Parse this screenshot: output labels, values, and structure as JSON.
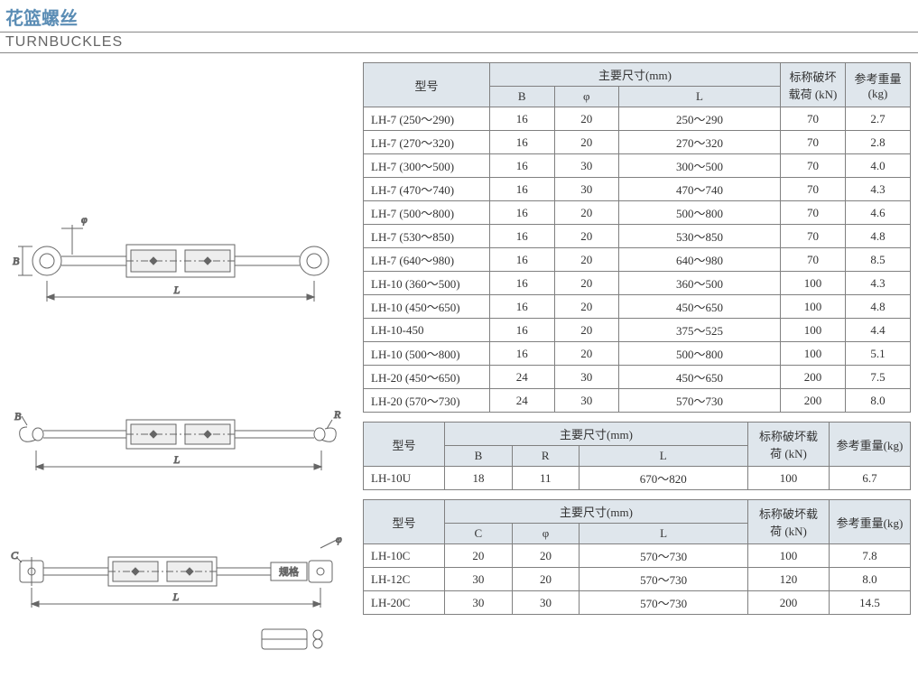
{
  "title_zh": "花篮螺丝",
  "title_en": "TURNBUCKLES",
  "colors": {
    "title": "#5b8db5",
    "header_bg": "#dfe6ec",
    "border": "#808080",
    "text": "#333333",
    "diagram_stroke": "#666666",
    "diagram_fill": "#f0f0f0"
  },
  "table1": {
    "headers": {
      "model": "型号",
      "main_dim": "主要尺寸(mm)",
      "B": "B",
      "phi": "φ",
      "L": "L",
      "load": "标称破坏载荷 (kN)",
      "weight": "参考重量(kg)"
    },
    "rows": [
      {
        "model": "LH-7 (250～290)",
        "B": "16",
        "phi": "20",
        "L": "250～290",
        "load": "70",
        "weight": "2.7"
      },
      {
        "model": "LH-7 (270～320)",
        "B": "16",
        "phi": "20",
        "L": "270～320",
        "load": "70",
        "weight": "2.8"
      },
      {
        "model": "LH-7 (300～500)",
        "B": "16",
        "phi": "30",
        "L": "300～500",
        "load": "70",
        "weight": "4.0"
      },
      {
        "model": "LH-7 (470～740)",
        "B": "16",
        "phi": "30",
        "L": "470～740",
        "load": "70",
        "weight": "4.3"
      },
      {
        "model": "LH-7 (500～800)",
        "B": "16",
        "phi": "20",
        "L": "500～800",
        "load": "70",
        "weight": "4.6"
      },
      {
        "model": "LH-7 (530～850)",
        "B": "16",
        "phi": "20",
        "L": "530～850",
        "load": "70",
        "weight": "4.8"
      },
      {
        "model": "LH-7 (640～980)",
        "B": "16",
        "phi": "20",
        "L": "640～980",
        "load": "70",
        "weight": "8.5"
      },
      {
        "model": "LH-10 (360～500)",
        "B": "16",
        "phi": "20",
        "L": "360～500",
        "load": "100",
        "weight": "4.3"
      },
      {
        "model": "LH-10 (450～650)",
        "B": "16",
        "phi": "20",
        "L": "450～650",
        "load": "100",
        "weight": "4.8"
      },
      {
        "model": "LH-10-450",
        "B": "16",
        "phi": "20",
        "L": "375～525",
        "load": "100",
        "weight": "4.4"
      },
      {
        "model": "LH-10 (500～800)",
        "B": "16",
        "phi": "20",
        "L": "500～800",
        "load": "100",
        "weight": "5.1"
      },
      {
        "model": "LH-20 (450～650)",
        "B": "24",
        "phi": "30",
        "L": "450～650",
        "load": "200",
        "weight": "7.5"
      },
      {
        "model": "LH-20 (570～730)",
        "B": "24",
        "phi": "30",
        "L": "570～730",
        "load": "200",
        "weight": "8.0"
      }
    ]
  },
  "table2": {
    "headers": {
      "model": "型号",
      "main_dim": "主要尺寸(mm)",
      "B": "B",
      "R": "R",
      "L": "L",
      "load": "标称破坏载荷 (kN)",
      "weight": "参考重量(kg)"
    },
    "rows": [
      {
        "model": "LH-10U",
        "B": "18",
        "R": "11",
        "L": "670～820",
        "load": "100",
        "weight": "6.7"
      }
    ]
  },
  "table3": {
    "headers": {
      "model": "型号",
      "main_dim": "主要尺寸(mm)",
      "C": "C",
      "phi": "φ",
      "L": "L",
      "load": "标称破坏载荷 (kN)",
      "weight": "参考重量(kg)"
    },
    "rows": [
      {
        "model": "LH-10C",
        "C": "20",
        "phi": "20",
        "L": "570～730",
        "load": "100",
        "weight": "7.8"
      },
      {
        "model": "LH-12C",
        "C": "30",
        "phi": "20",
        "L": "570～730",
        "load": "120",
        "weight": "8.0"
      },
      {
        "model": "LH-20C",
        "C": "30",
        "phi": "30",
        "L": "570～730",
        "load": "200",
        "weight": "14.5"
      }
    ]
  },
  "diagram_labels": {
    "phi": "φ",
    "B": "B",
    "L": "L",
    "R": "R",
    "C": "C",
    "spec": "规格"
  }
}
